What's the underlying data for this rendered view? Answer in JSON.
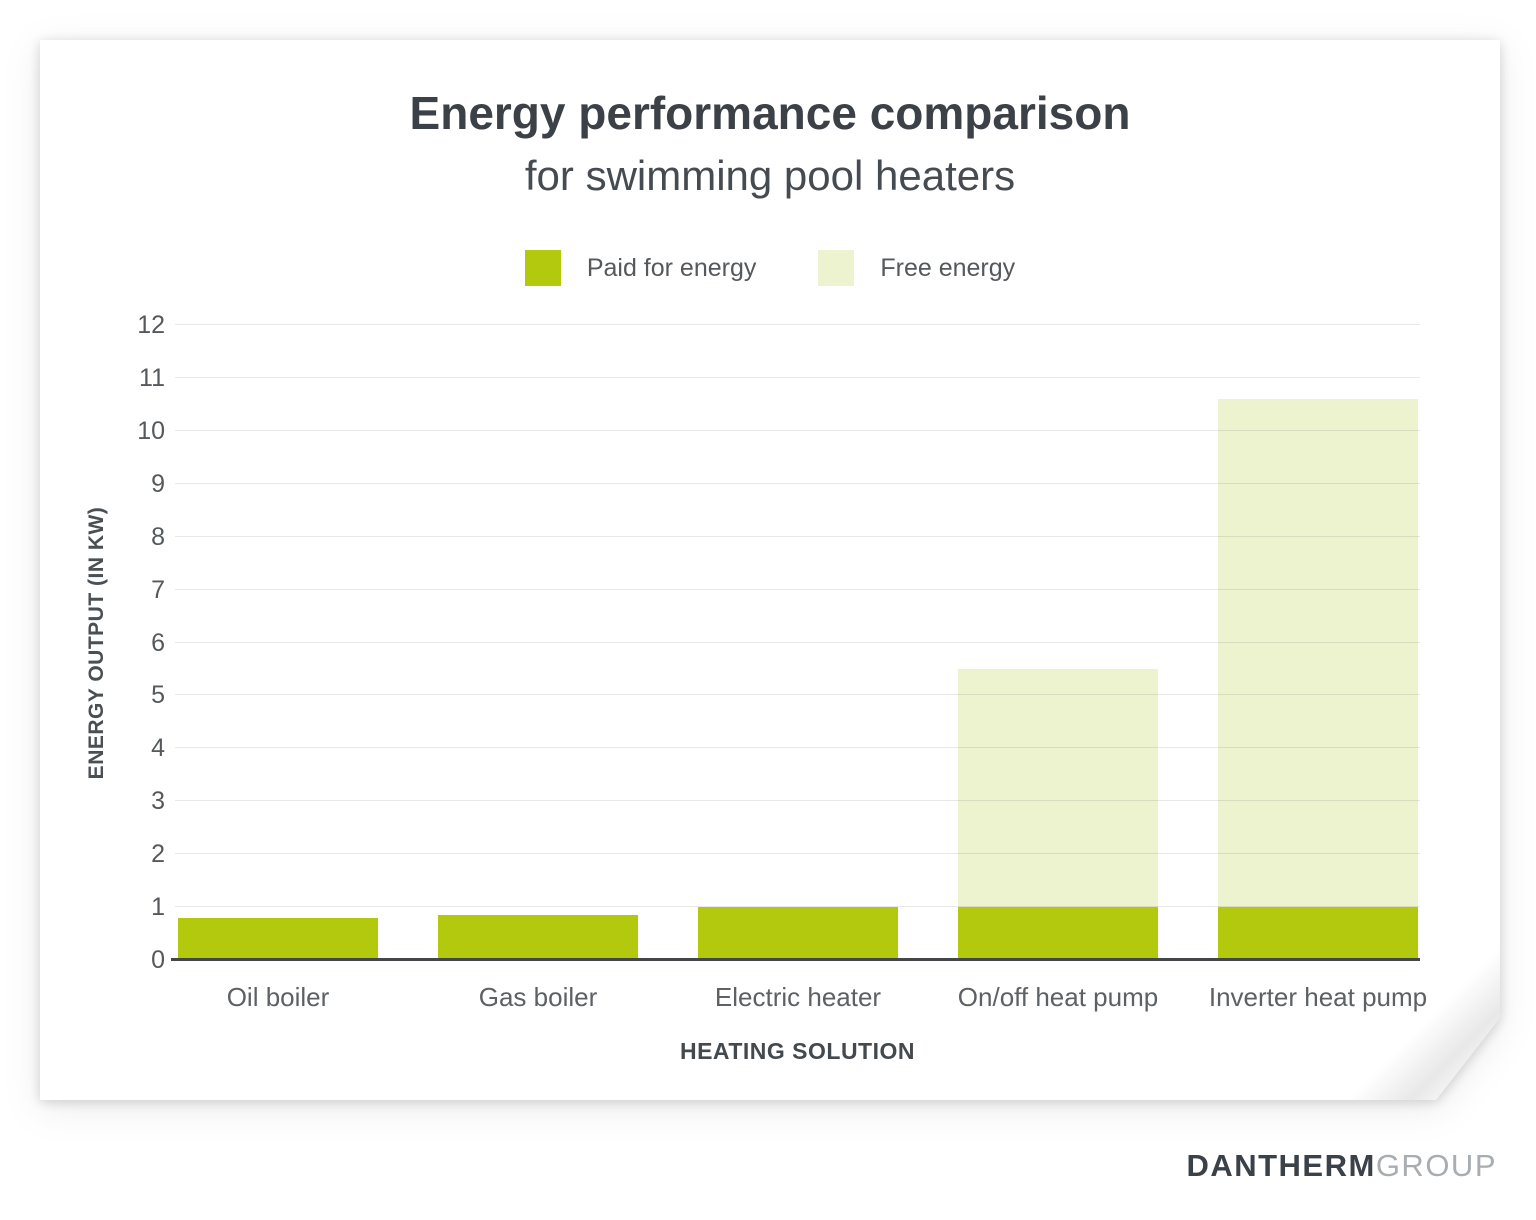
{
  "chart_data": {
    "type": "bar",
    "stacked": true,
    "title": "Energy performance comparison",
    "subtitle": "for swimming pool heaters",
    "categories": [
      "Oil boiler",
      "Gas boiler",
      "Electric heater",
      "On/off heat pump",
      "Inverter heat pump"
    ],
    "series": [
      {
        "name": "Paid for energy",
        "color": "#b2c90d",
        "values": [
          0.8,
          0.85,
          1.0,
          1.0,
          1.0
        ]
      },
      {
        "name": "Free energy",
        "color": "#edf2cf",
        "values": [
          0,
          0,
          0,
          4.5,
          9.6
        ]
      }
    ],
    "stack_totals": [
      0.8,
      0.85,
      1.0,
      5.5,
      10.6
    ],
    "xlabel": "HEATING SOLUTION",
    "ylabel": "ENERGY OUTPUT (IN KW)",
    "ylim": [
      0,
      12
    ],
    "yticks": [
      0,
      1,
      2,
      3,
      4,
      5,
      6,
      7,
      8,
      9,
      10,
      11,
      12
    ],
    "grid": true,
    "legend_position": "top-center"
  },
  "colors": {
    "paid_energy": "#b2c90d",
    "free_energy": "#edf2cf",
    "title_text": "#3b4147",
    "axis_text": "#55595c",
    "gridline": "#e4e5e5",
    "axis_line": "#43474a",
    "logo_primary": "#3b4149",
    "logo_secondary": "#a9adb1"
  },
  "logo": {
    "primary": "DANTHERM",
    "secondary": "GROUP"
  }
}
